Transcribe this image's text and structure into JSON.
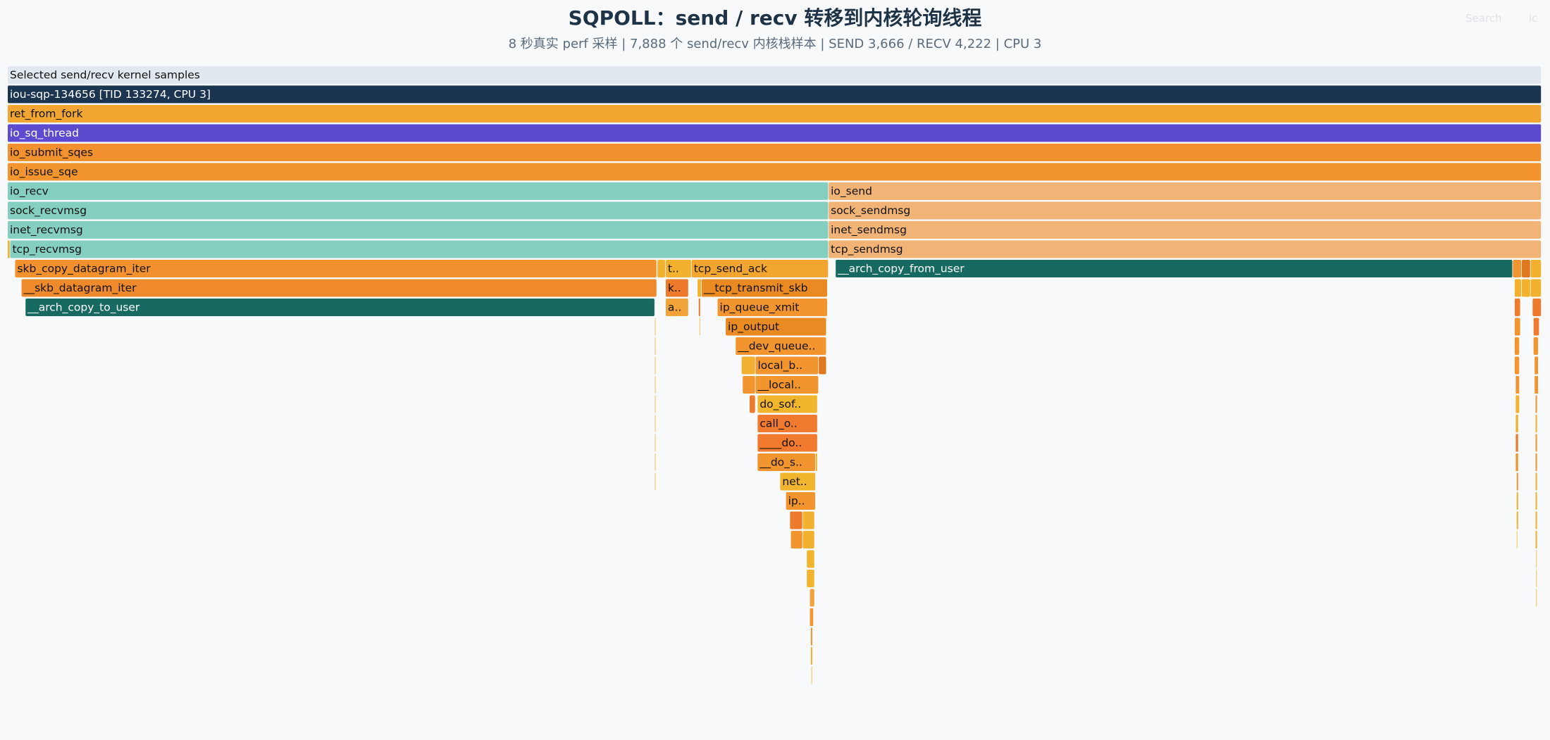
{
  "header": {
    "title": "SQPOLL：send / recv 转移到内核轮询线程",
    "subtitle": "8 秒真实 perf 采样 | 7,888 个 send/recv 内核栈样本 | SEND 3,666 / RECV 4,222 | CPU 3",
    "search_label": "Search",
    "ic_label": "ic"
  },
  "colors": {
    "background": "#f8f9fa",
    "root": "#e1e8ef",
    "thread": "#1b3550",
    "sq_thread": "#5d4bcf",
    "recv_teal": "#85cfc0",
    "send_peach": "#f2b377",
    "copy_teal": "#176a62",
    "orange": "#f2912e",
    "yellow": "#f2b12e"
  },
  "flamegraph": {
    "frames": [
      {
        "label": "Selected send/recv kernel samples",
        "depth": 0,
        "start": 0.0,
        "end": 1.0,
        "color": "#e1e8ef",
        "text_color": "#111111"
      },
      {
        "label": "iou-sqp-134656 [TID 133274, CPU 3]",
        "depth": 1,
        "start": 0.0,
        "end": 1.0,
        "color": "#1b3550",
        "text_color": "#ffffff"
      },
      {
        "label": "ret_from_fork",
        "depth": 2,
        "start": 0.0,
        "end": 1.0,
        "color": "#f0a630",
        "text_color": "#111111"
      },
      {
        "label": "io_sq_thread",
        "depth": 3,
        "start": 0.0,
        "end": 1.0,
        "color": "#5d4bcf",
        "text_color": "#ffffff"
      },
      {
        "label": "io_submit_sqes",
        "depth": 4,
        "start": 0.0,
        "end": 1.0,
        "color": "#f2912e",
        "text_color": "#111111"
      },
      {
        "label": "io_issue_sqe",
        "depth": 5,
        "start": 0.0,
        "end": 1.0,
        "color": "#f2952e",
        "text_color": "#111111"
      },
      {
        "label": "io_recv",
        "depth": 6,
        "start": 0.0,
        "end": 0.5352,
        "color": "#85cfc0",
        "text_color": "#111111"
      },
      {
        "label": "sock_recvmsg",
        "depth": 7,
        "start": 0.0,
        "end": 0.5352,
        "color": "#85cfc0",
        "text_color": "#111111"
      },
      {
        "label": "inet_recvmsg",
        "depth": 8,
        "start": 0.0,
        "end": 0.5352,
        "color": "#85cfc0",
        "text_color": "#111111"
      },
      {
        "label": "tcp_recvmsg",
        "depth": 9,
        "start": 0.0016,
        "end": 0.5352,
        "color": "#85cfc0",
        "text_color": "#111111"
      },
      {
        "label": "",
        "depth": 9,
        "start": 0.0,
        "end": 0.0016,
        "color": "#f2b12e",
        "text_color": "#111111"
      },
      {
        "label": "io_send",
        "depth": 6,
        "start": 0.5352,
        "end": 1.0,
        "color": "#f2b377",
        "text_color": "#111111"
      },
      {
        "label": "sock_sendmsg",
        "depth": 7,
        "start": 0.5352,
        "end": 1.0,
        "color": "#f2b377",
        "text_color": "#111111"
      },
      {
        "label": "inet_sendmsg",
        "depth": 8,
        "start": 0.5352,
        "end": 1.0,
        "color": "#f2b377",
        "text_color": "#111111"
      },
      {
        "label": "tcp_sendmsg",
        "depth": 9,
        "start": 0.5352,
        "end": 1.0,
        "color": "#f2b377",
        "text_color": "#111111"
      },
      {
        "label": "skb_copy_datagram_iter",
        "depth": 10,
        "start": 0.0048,
        "end": 0.4233,
        "color": "#f2912e",
        "text_color": "#111111"
      },
      {
        "label": "__skb_datagram_iter",
        "depth": 11,
        "start": 0.009,
        "end": 0.4233,
        "color": "#ef8a2c",
        "text_color": "#111111"
      },
      {
        "label": "__arch_copy_to_user",
        "depth": 12,
        "start": 0.0116,
        "end": 0.422,
        "color": "#176a62",
        "text_color": "#ffffff"
      },
      {
        "label": "",
        "depth": 13,
        "start": 0.422,
        "end": 0.4226,
        "color": "#f2b12e",
        "text_color": "#111111"
      },
      {
        "label": "",
        "depth": 14,
        "start": 0.422,
        "end": 0.4226,
        "color": "#f2b12e",
        "text_color": "#111111"
      },
      {
        "label": "",
        "depth": 15,
        "start": 0.422,
        "end": 0.4226,
        "color": "#f2b12e",
        "text_color": "#111111"
      },
      {
        "label": "",
        "depth": 16,
        "start": 0.422,
        "end": 0.4226,
        "color": "#f2b12e",
        "text_color": "#111111"
      },
      {
        "label": "",
        "depth": 17,
        "start": 0.422,
        "end": 0.4226,
        "color": "#f2b12e",
        "text_color": "#111111"
      },
      {
        "label": "",
        "depth": 18,
        "start": 0.422,
        "end": 0.4226,
        "color": "#f2b12e",
        "text_color": "#111111"
      },
      {
        "label": "",
        "depth": 19,
        "start": 0.422,
        "end": 0.4226,
        "color": "#f2b12e",
        "text_color": "#111111"
      },
      {
        "label": "",
        "depth": 20,
        "start": 0.422,
        "end": 0.4226,
        "color": "#f2b12e",
        "text_color": "#111111"
      },
      {
        "label": "",
        "depth": 21,
        "start": 0.422,
        "end": 0.4226,
        "color": "#f2b12e",
        "text_color": "#111111"
      },
      {
        "label": "",
        "depth": 10,
        "start": 0.4236,
        "end": 0.429,
        "color": "#f2b12e",
        "text_color": "#111111"
      },
      {
        "label": "t..",
        "depth": 10,
        "start": 0.429,
        "end": 0.4459,
        "color": "#f2b12e",
        "text_color": "#111111"
      },
      {
        "label": "k..",
        "depth": 11,
        "start": 0.429,
        "end": 0.444,
        "color": "#ee7b2c",
        "text_color": "#111111"
      },
      {
        "label": "a..",
        "depth": 12,
        "start": 0.429,
        "end": 0.444,
        "color": "#f2a33a",
        "text_color": "#111111"
      },
      {
        "label": "tcp_send_ack",
        "depth": 10,
        "start": 0.4459,
        "end": 0.5352,
        "color": "#f2a630",
        "text_color": "#111111"
      },
      {
        "label": "",
        "depth": 11,
        "start": 0.4498,
        "end": 0.4524,
        "color": "#f2b12e",
        "text_color": "#111111"
      },
      {
        "label": "__tcp_transmit_skb",
        "depth": 11,
        "start": 0.4524,
        "end": 0.5346,
        "color": "#e98a22",
        "text_color": "#111111"
      },
      {
        "label": "",
        "depth": 12,
        "start": 0.4505,
        "end": 0.4518,
        "color": "#ee7b2c",
        "text_color": "#111111"
      },
      {
        "label": "",
        "depth": 13,
        "start": 0.451,
        "end": 0.4514,
        "color": "#f2b12e",
        "text_color": "#111111"
      },
      {
        "label": "ip_queue_xmit",
        "depth": 12,
        "start": 0.4628,
        "end": 0.5346,
        "color": "#f2952e",
        "text_color": "#111111"
      },
      {
        "label": "ip_output",
        "depth": 13,
        "start": 0.4681,
        "end": 0.5339,
        "color": "#ea8a22",
        "text_color": "#111111"
      },
      {
        "label": "__dev_queue..",
        "depth": 14,
        "start": 0.4746,
        "end": 0.5339,
        "color": "#f2952e",
        "text_color": "#111111"
      },
      {
        "label": "",
        "depth": 15,
        "start": 0.4785,
        "end": 0.4876,
        "color": "#f2b12e",
        "text_color": "#111111"
      },
      {
        "label": "local_b..",
        "depth": 15,
        "start": 0.4876,
        "end": 0.5288,
        "color": "#f2952e",
        "text_color": "#111111"
      },
      {
        "label": "",
        "depth": 15,
        "start": 0.5288,
        "end": 0.5339,
        "color": "#e07820",
        "text_color": "#111111"
      },
      {
        "label": "",
        "depth": 16,
        "start": 0.4792,
        "end": 0.4876,
        "color": "#f2952e",
        "text_color": "#111111"
      },
      {
        "label": "__local..",
        "depth": 16,
        "start": 0.4876,
        "end": 0.5288,
        "color": "#f2952e",
        "text_color": "#111111"
      },
      {
        "label": "",
        "depth": 17,
        "start": 0.4837,
        "end": 0.4876,
        "color": "#ee7b2c",
        "text_color": "#111111"
      },
      {
        "label": "do_sof..",
        "depth": 17,
        "start": 0.4889,
        "end": 0.5281,
        "color": "#f2b52e",
        "text_color": "#111111"
      },
      {
        "label": "call_o..",
        "depth": 18,
        "start": 0.4889,
        "end": 0.5281,
        "color": "#f27a2e",
        "text_color": "#111111"
      },
      {
        "label": "____do..",
        "depth": 19,
        "start": 0.4889,
        "end": 0.5281,
        "color": "#f27a2e",
        "text_color": "#111111"
      },
      {
        "label": "__do_s..",
        "depth": 20,
        "start": 0.4889,
        "end": 0.5268,
        "color": "#f2952e",
        "text_color": "#111111"
      },
      {
        "label": "",
        "depth": 20,
        "start": 0.5268,
        "end": 0.5281,
        "color": "#f2b12e",
        "text_color": "#111111"
      },
      {
        "label": "net..",
        "depth": 21,
        "start": 0.5036,
        "end": 0.5268,
        "color": "#f2b52e",
        "text_color": "#111111"
      },
      {
        "label": "ip..",
        "depth": 22,
        "start": 0.5074,
        "end": 0.5268,
        "color": "#f2952e",
        "text_color": "#111111"
      },
      {
        "label": "",
        "depth": 23,
        "start": 0.51,
        "end": 0.5184,
        "color": "#ee7b2c",
        "text_color": "#111111"
      },
      {
        "label": "",
        "depth": 23,
        "start": 0.5184,
        "end": 0.5262,
        "color": "#f2b12e",
        "text_color": "#111111"
      },
      {
        "label": "",
        "depth": 24,
        "start": 0.5106,
        "end": 0.5184,
        "color": "#f2952e",
        "text_color": "#111111"
      },
      {
        "label": "",
        "depth": 24,
        "start": 0.5184,
        "end": 0.5262,
        "color": "#f2b12e",
        "text_color": "#111111"
      },
      {
        "label": "",
        "depth": 25,
        "start": 0.521,
        "end": 0.5262,
        "color": "#f2b52e",
        "text_color": "#111111"
      },
      {
        "label": "",
        "depth": 26,
        "start": 0.521,
        "end": 0.5262,
        "color": "#f2b52e",
        "text_color": "#111111"
      },
      {
        "label": "",
        "depth": 27,
        "start": 0.523,
        "end": 0.5262,
        "color": "#f2a33a",
        "text_color": "#111111"
      },
      {
        "label": "",
        "depth": 28,
        "start": 0.523,
        "end": 0.5255,
        "color": "#f2952e",
        "text_color": "#111111"
      },
      {
        "label": "",
        "depth": 29,
        "start": 0.5236,
        "end": 0.5249,
        "color": "#f2952e",
        "text_color": "#111111"
      },
      {
        "label": "",
        "depth": 30,
        "start": 0.5236,
        "end": 0.5249,
        "color": "#f2b12e",
        "text_color": "#111111"
      },
      {
        "label": "",
        "depth": 31,
        "start": 0.524,
        "end": 0.5246,
        "color": "#f2b12e",
        "text_color": "#111111"
      },
      {
        "label": "__arch_copy_from_user",
        "depth": 10,
        "start": 0.5398,
        "end": 0.9813,
        "color": "#176a62",
        "text_color": "#ffffff"
      },
      {
        "label": "",
        "depth": 10,
        "start": 0.9813,
        "end": 0.9871,
        "color": "#f2952e",
        "text_color": "#111111"
      },
      {
        "label": "",
        "depth": 10,
        "start": 0.9871,
        "end": 0.9929,
        "color": "#e07820",
        "text_color": "#111111"
      },
      {
        "label": "",
        "depth": 10,
        "start": 0.9929,
        "end": 1.0,
        "color": "#f2b12e",
        "text_color": "#111111"
      },
      {
        "label": "",
        "depth": 11,
        "start": 0.9825,
        "end": 0.9871,
        "color": "#f2b12e",
        "text_color": "#111111"
      },
      {
        "label": "",
        "depth": 11,
        "start": 0.9871,
        "end": 0.9929,
        "color": "#f2b12e",
        "text_color": "#111111"
      },
      {
        "label": "",
        "depth": 11,
        "start": 0.9929,
        "end": 1.0,
        "color": "#f2b12e",
        "text_color": "#111111"
      },
      {
        "label": "",
        "depth": 12,
        "start": 0.9825,
        "end": 0.9864,
        "color": "#ee7b2c",
        "text_color": "#111111"
      },
      {
        "label": "",
        "depth": 12,
        "start": 0.9942,
        "end": 1.0,
        "color": "#ee7b2c",
        "text_color": "#111111"
      },
      {
        "label": "",
        "depth": 13,
        "start": 0.9825,
        "end": 0.9864,
        "color": "#f2952e",
        "text_color": "#111111"
      },
      {
        "label": "",
        "depth": 13,
        "start": 0.9948,
        "end": 0.9987,
        "color": "#ee7b2c",
        "text_color": "#111111"
      },
      {
        "label": "",
        "depth": 14,
        "start": 0.9825,
        "end": 0.9858,
        "color": "#f2952e",
        "text_color": "#111111"
      },
      {
        "label": "",
        "depth": 14,
        "start": 0.9948,
        "end": 0.9981,
        "color": "#f2952e",
        "text_color": "#111111"
      },
      {
        "label": "",
        "depth": 15,
        "start": 0.9825,
        "end": 0.9858,
        "color": "#f2952e",
        "text_color": "#111111"
      },
      {
        "label": "",
        "depth": 15,
        "start": 0.9955,
        "end": 0.9981,
        "color": "#f2952e",
        "text_color": "#111111"
      },
      {
        "label": "",
        "depth": 16,
        "start": 0.9832,
        "end": 0.9858,
        "color": "#f2952e",
        "text_color": "#111111"
      },
      {
        "label": "",
        "depth": 16,
        "start": 0.9955,
        "end": 0.9981,
        "color": "#f2952e",
        "text_color": "#111111"
      },
      {
        "label": "",
        "depth": 17,
        "start": 0.9832,
        "end": 0.9858,
        "color": "#f2b12e",
        "text_color": "#111111"
      },
      {
        "label": "",
        "depth": 17,
        "start": 0.9961,
        "end": 0.9974,
        "color": "#f2952e",
        "text_color": "#111111"
      },
      {
        "label": "",
        "depth": 18,
        "start": 0.9832,
        "end": 0.9851,
        "color": "#f2b12e",
        "text_color": "#111111"
      },
      {
        "label": "",
        "depth": 18,
        "start": 0.9961,
        "end": 0.9974,
        "color": "#f2b12e",
        "text_color": "#111111"
      },
      {
        "label": "",
        "depth": 19,
        "start": 0.9832,
        "end": 0.9851,
        "color": "#ee7b2c",
        "text_color": "#111111"
      },
      {
        "label": "",
        "depth": 19,
        "start": 0.9961,
        "end": 0.9974,
        "color": "#f2952e",
        "text_color": "#111111"
      },
      {
        "label": "",
        "depth": 20,
        "start": 0.9832,
        "end": 0.9851,
        "color": "#f2952e",
        "text_color": "#111111"
      },
      {
        "label": "",
        "depth": 20,
        "start": 0.9961,
        "end": 0.9974,
        "color": "#f2952e",
        "text_color": "#111111"
      },
      {
        "label": "",
        "depth": 21,
        "start": 0.9838,
        "end": 0.9851,
        "color": "#f2952e",
        "text_color": "#111111"
      },
      {
        "label": "",
        "depth": 21,
        "start": 0.9961,
        "end": 0.9974,
        "color": "#f2b12e",
        "text_color": "#111111"
      },
      {
        "label": "",
        "depth": 22,
        "start": 0.9838,
        "end": 0.9851,
        "color": "#f2b12e",
        "text_color": "#111111"
      },
      {
        "label": "",
        "depth": 22,
        "start": 0.9961,
        "end": 0.9974,
        "color": "#f2b12e",
        "text_color": "#111111"
      },
      {
        "label": "",
        "depth": 23,
        "start": 0.9838,
        "end": 0.9851,
        "color": "#f2b12e",
        "text_color": "#111111"
      },
      {
        "label": "",
        "depth": 23,
        "start": 0.9961,
        "end": 0.9974,
        "color": "#f2b12e",
        "text_color": "#111111"
      },
      {
        "label": "",
        "depth": 24,
        "start": 0.9838,
        "end": 0.9845,
        "color": "#f2b12e",
        "text_color": "#111111"
      },
      {
        "label": "",
        "depth": 24,
        "start": 0.9961,
        "end": 0.9974,
        "color": "#f2b12e",
        "text_color": "#111111"
      },
      {
        "label": "",
        "depth": 25,
        "start": 0.9965,
        "end": 0.9971,
        "color": "#f2b12e",
        "text_color": "#111111"
      },
      {
        "label": "",
        "depth": 26,
        "start": 0.9965,
        "end": 0.9971,
        "color": "#f2b12e",
        "text_color": "#111111"
      },
      {
        "label": "",
        "depth": 27,
        "start": 0.9965,
        "end": 0.9971,
        "color": "#f2b12e",
        "text_color": "#111111"
      }
    ]
  }
}
